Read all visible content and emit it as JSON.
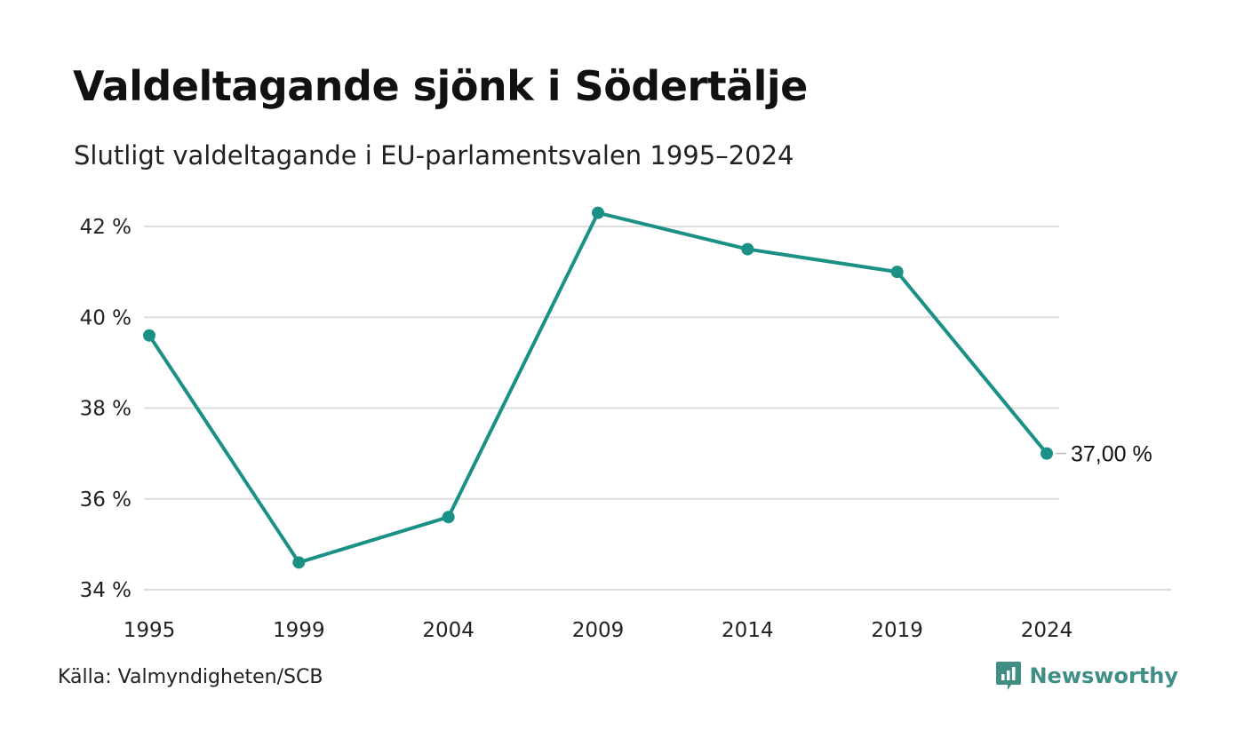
{
  "header": {
    "title": "Valdeltagande sjönk i Södertälje",
    "subtitle": "Slutligt valdeltagande i EU-parlamentsvalen 1995–2024"
  },
  "footer": {
    "source": "Källa: Valmyndigheten/SCB",
    "brand": "Newsworthy",
    "brand_icon": "newsworthy-logo-icon"
  },
  "colors": {
    "line": "#1a9184",
    "grid": "#dddddd",
    "brand": "#3f8f86"
  },
  "chart_data": {
    "type": "line",
    "x": [
      "1995",
      "1999",
      "2004",
      "2009",
      "2014",
      "2019",
      "2024"
    ],
    "series": [
      {
        "values": [
          39.6,
          34.6,
          35.6,
          42.3,
          41.5,
          41.0,
          37.0
        ]
      }
    ],
    "yticks": [
      34,
      36,
      38,
      40,
      42
    ],
    "ytick_labels": [
      "34 %",
      "36 %",
      "38 %",
      "40 %",
      "42 %"
    ],
    "ylim": [
      34,
      42
    ],
    "grid": true,
    "end_label": "37,00 %"
  }
}
